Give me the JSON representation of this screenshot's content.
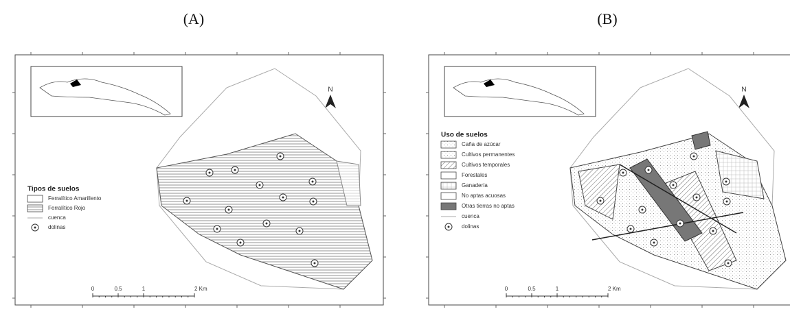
{
  "panels": [
    {
      "label": "(A)",
      "north": "N",
      "legend": {
        "title": "Tipos de suelos",
        "items": [
          "Ferralítico Amarillento",
          "Ferralítico Rojo",
          "cuenca",
          "dolinas"
        ]
      },
      "scale": [
        "0",
        "0.5",
        "1",
        "2 Km"
      ]
    },
    {
      "label": "(B)",
      "north": "N",
      "legend": {
        "title": "Uso de suelos",
        "items": [
          "Caña de azúcar",
          "Cultivos permanentes",
          "Cultivos temporales",
          "Forestales",
          "Ganadería",
          "No aptas acuosas",
          "Otras tierras no aptas",
          "cuenca",
          "dolinas"
        ]
      },
      "scale": [
        "0",
        "0.5",
        "1",
        "2 Km"
      ]
    }
  ]
}
